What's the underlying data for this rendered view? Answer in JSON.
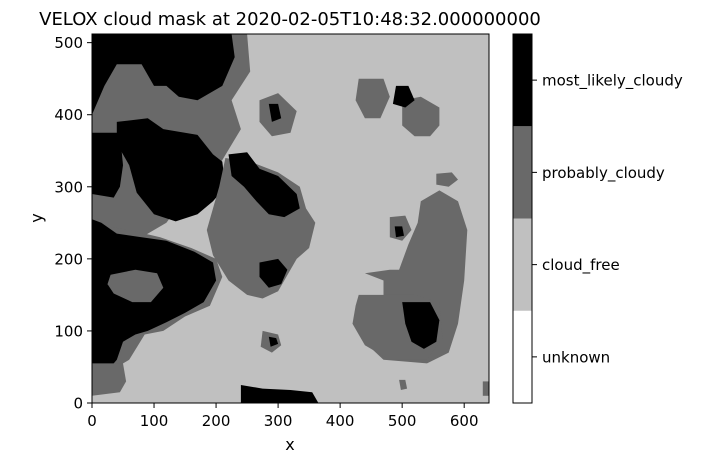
{
  "chart_data": {
    "type": "heatmap",
    "title": "VELOX cloud mask at 2020-02-05T10:48:32.000000000",
    "xlabel": "x",
    "ylabel": "y",
    "xlim": [
      0,
      640
    ],
    "ylim": [
      0,
      512
    ],
    "x_ticks": [
      0,
      100,
      200,
      300,
      400,
      500,
      600
    ],
    "y_ticks": [
      0,
      100,
      200,
      300,
      400,
      500
    ],
    "grid": false,
    "colorbar": {
      "orientation": "vertical",
      "position": "right",
      "categories": [
        "unknown",
        "cloud_free",
        "probably_cloudy",
        "most_likely_cloudy"
      ],
      "colors": {
        "unknown": "#ffffff",
        "cloud_free": "#c0c0c0",
        "probably_cloudy": "#696969",
        "most_likely_cloudy": "#000000"
      }
    },
    "background_class": "cloud_free",
    "regions": [
      {
        "class": "probably_cloudy",
        "polygon": [
          [
            0,
            512
          ],
          [
            250,
            512
          ],
          [
            255,
            460
          ],
          [
            225,
            420
          ],
          [
            240,
            380
          ],
          [
            205,
            330
          ],
          [
            180,
            300
          ],
          [
            150,
            285
          ],
          [
            120,
            250
          ],
          [
            90,
            235
          ],
          [
            60,
            220
          ],
          [
            35,
            200
          ],
          [
            15,
            190
          ],
          [
            0,
            180
          ]
        ]
      },
      {
        "class": "most_likely_cloudy",
        "polygon": [
          [
            0,
            512
          ],
          [
            225,
            512
          ],
          [
            230,
            480
          ],
          [
            210,
            440
          ],
          [
            170,
            420
          ],
          [
            140,
            425
          ],
          [
            120,
            440
          ],
          [
            100,
            440
          ],
          [
            80,
            470
          ],
          [
            40,
            470
          ],
          [
            20,
            440
          ],
          [
            5,
            410
          ],
          [
            0,
            400
          ]
        ]
      },
      {
        "class": "most_likely_cloudy",
        "polygon": [
          [
            40,
            390
          ],
          [
            90,
            395
          ],
          [
            115,
            380
          ],
          [
            170,
            372
          ],
          [
            195,
            345
          ],
          [
            210,
            335
          ],
          [
            215,
            300
          ],
          [
            195,
            280
          ],
          [
            170,
            262
          ],
          [
            135,
            252
          ],
          [
            100,
            262
          ],
          [
            72,
            292
          ],
          [
            60,
            330
          ],
          [
            40,
            360
          ]
        ]
      },
      {
        "class": "most_likely_cloudy",
        "polygon": [
          [
            0,
            375
          ],
          [
            45,
            375
          ],
          [
            50,
            330
          ],
          [
            45,
            300
          ],
          [
            35,
            285
          ],
          [
            0,
            290
          ]
        ]
      },
      {
        "class": "probably_cloudy",
        "polygon": [
          [
            215,
            340
          ],
          [
            255,
            335
          ],
          [
            300,
            320
          ],
          [
            335,
            300
          ],
          [
            345,
            270
          ],
          [
            360,
            250
          ],
          [
            350,
            215
          ],
          [
            330,
            200
          ],
          [
            300,
            155
          ],
          [
            275,
            145
          ],
          [
            250,
            150
          ],
          [
            220,
            170
          ],
          [
            195,
            205
          ],
          [
            185,
            240
          ],
          [
            195,
            270
          ],
          [
            205,
            300
          ]
        ]
      },
      {
        "class": "most_likely_cloudy",
        "polygon": [
          [
            220,
            345
          ],
          [
            250,
            348
          ],
          [
            270,
            325
          ],
          [
            300,
            315
          ],
          [
            330,
            290
          ],
          [
            335,
            270
          ],
          [
            310,
            258
          ],
          [
            285,
            262
          ],
          [
            265,
            280
          ],
          [
            245,
            300
          ],
          [
            225,
            315
          ]
        ]
      },
      {
        "class": "most_likely_cloudy",
        "polygon": [
          [
            270,
            195
          ],
          [
            300,
            200
          ],
          [
            315,
            185
          ],
          [
            305,
            165
          ],
          [
            285,
            160
          ],
          [
            270,
            175
          ]
        ]
      },
      {
        "class": "probably_cloudy",
        "polygon": [
          [
            0,
            262
          ],
          [
            0,
            40
          ],
          [
            20,
            40
          ],
          [
            60,
            60
          ],
          [
            85,
            95
          ],
          [
            115,
            100
          ],
          [
            150,
            120
          ],
          [
            190,
            135
          ],
          [
            210,
            175
          ],
          [
            200,
            200
          ],
          [
            160,
            215
          ],
          [
            110,
            230
          ],
          [
            60,
            240
          ],
          [
            25,
            245
          ]
        ]
      },
      {
        "class": "most_likely_cloudy",
        "polygon": [
          [
            0,
            255
          ],
          [
            15,
            250
          ],
          [
            40,
            235
          ],
          [
            80,
            230
          ],
          [
            120,
            225
          ],
          [
            165,
            210
          ],
          [
            195,
            195
          ],
          [
            200,
            170
          ],
          [
            180,
            140
          ],
          [
            150,
            125
          ],
          [
            120,
            112
          ],
          [
            90,
            100
          ],
          [
            70,
            95
          ],
          [
            50,
            85
          ],
          [
            40,
            60
          ],
          [
            25,
            45
          ],
          [
            0,
            50
          ]
        ]
      },
      {
        "class": "probably_cloudy",
        "polygon": [
          [
            30,
            178
          ],
          [
            70,
            185
          ],
          [
            105,
            180
          ],
          [
            115,
            160
          ],
          [
            95,
            140
          ],
          [
            65,
            140
          ],
          [
            35,
            152
          ],
          [
            25,
            165
          ]
        ]
      },
      {
        "class": "probably_cloudy",
        "polygon": [
          [
            0,
            55
          ],
          [
            50,
            55
          ],
          [
            55,
            30
          ],
          [
            45,
            15
          ],
          [
            0,
            10
          ]
        ]
      },
      {
        "class": "most_likely_cloudy",
        "polygon": [
          [
            240,
            25
          ],
          [
            275,
            20
          ],
          [
            320,
            18
          ],
          [
            355,
            15
          ],
          [
            365,
            0
          ],
          [
            240,
            0
          ]
        ]
      },
      {
        "class": "probably_cloudy",
        "polygon": [
          [
            275,
            100
          ],
          [
            300,
            95
          ],
          [
            305,
            80
          ],
          [
            290,
            70
          ],
          [
            272,
            78
          ]
        ]
      },
      {
        "class": "most_likely_cloudy",
        "polygon": [
          [
            285,
            92
          ],
          [
            297,
            90
          ],
          [
            300,
            82
          ],
          [
            288,
            78
          ]
        ]
      },
      {
        "class": "probably_cloudy",
        "polygon": [
          [
            440,
            180
          ],
          [
            470,
            170
          ],
          [
            470,
            140
          ],
          [
            455,
            110
          ],
          [
            445,
            80
          ],
          [
            470,
            60
          ],
          [
            540,
            55
          ],
          [
            575,
            70
          ],
          [
            590,
            110
          ],
          [
            600,
            170
          ],
          [
            605,
            240
          ],
          [
            590,
            280
          ],
          [
            560,
            295
          ],
          [
            530,
            280
          ],
          [
            525,
            250
          ],
          [
            510,
            220
          ],
          [
            495,
            185
          ],
          [
            480,
            185
          ]
        ]
      },
      {
        "class": "probably_cloudy",
        "polygon": [
          [
            430,
            150
          ],
          [
            520,
            150
          ],
          [
            560,
            140
          ],
          [
            565,
            90
          ],
          [
            540,
            60
          ],
          [
            480,
            60
          ],
          [
            440,
            80
          ],
          [
            420,
            110
          ],
          [
            425,
            135
          ]
        ]
      },
      {
        "class": "most_likely_cloudy",
        "polygon": [
          [
            500,
            140
          ],
          [
            545,
            140
          ],
          [
            560,
            115
          ],
          [
            555,
            85
          ],
          [
            535,
            75
          ],
          [
            515,
            85
          ],
          [
            505,
            110
          ]
        ]
      },
      {
        "class": "probably_cloudy",
        "polygon": [
          [
            480,
            258
          ],
          [
            505,
            260
          ],
          [
            515,
            240
          ],
          [
            500,
            225
          ],
          [
            480,
            230
          ]
        ]
      },
      {
        "class": "most_likely_cloudy",
        "polygon": [
          [
            488,
            245
          ],
          [
            500,
            245
          ],
          [
            503,
            232
          ],
          [
            490,
            230
          ]
        ]
      },
      {
        "class": "probably_cloudy",
        "polygon": [
          [
            500,
            420
          ],
          [
            530,
            425
          ],
          [
            560,
            410
          ],
          [
            560,
            385
          ],
          [
            545,
            370
          ],
          [
            520,
            370
          ],
          [
            500,
            385
          ]
        ]
      },
      {
        "class": "probably_cloudy",
        "polygon": [
          [
            430,
            450
          ],
          [
            470,
            450
          ],
          [
            480,
            425
          ],
          [
            465,
            395
          ],
          [
            440,
            395
          ],
          [
            425,
            420
          ]
        ]
      },
      {
        "class": "most_likely_cloudy",
        "polygon": [
          [
            490,
            440
          ],
          [
            510,
            440
          ],
          [
            520,
            420
          ],
          [
            505,
            410
          ],
          [
            485,
            415
          ]
        ]
      },
      {
        "class": "probably_cloudy",
        "polygon": [
          [
            270,
            420
          ],
          [
            300,
            430
          ],
          [
            330,
            405
          ],
          [
            320,
            375
          ],
          [
            290,
            370
          ],
          [
            270,
            390
          ]
        ]
      },
      {
        "class": "most_likely_cloudy",
        "polygon": [
          [
            285,
            415
          ],
          [
            300,
            415
          ],
          [
            305,
            395
          ],
          [
            290,
            390
          ]
        ]
      },
      {
        "class": "probably_cloudy",
        "polygon": [
          [
            555,
            318
          ],
          [
            580,
            320
          ],
          [
            590,
            310
          ],
          [
            575,
            300
          ],
          [
            555,
            303
          ]
        ]
      },
      {
        "class": "probably_cloudy",
        "polygon": [
          [
            495,
            32
          ],
          [
            505,
            32
          ],
          [
            508,
            20
          ],
          [
            498,
            18
          ]
        ]
      },
      {
        "class": "probably_cloudy",
        "polygon": [
          [
            640,
            30
          ],
          [
            640,
            10
          ],
          [
            630,
            10
          ],
          [
            630,
            30
          ]
        ]
      }
    ]
  }
}
